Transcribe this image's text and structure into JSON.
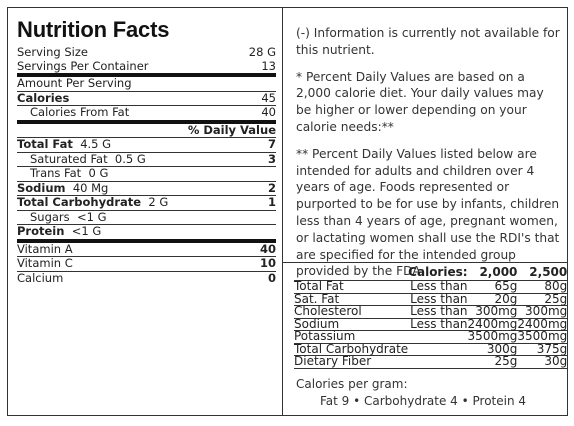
{
  "title": "Nutrition Facts",
  "serving": {
    "size_label": "Serving Size",
    "size_value": "28 G",
    "per_container_label": "Servings Per Container",
    "per_container_value": "13"
  },
  "amount_label": "Amount Per Serving",
  "calories": {
    "label": "Calories",
    "value": "45",
    "from_fat_label": "Calories From Fat",
    "from_fat_value": "40"
  },
  "dv_header": "% Daily Value",
  "nutrients": {
    "total_fat": {
      "label": "Total Fat",
      "amount": "4.5 G",
      "dv": "7"
    },
    "saturated_fat": {
      "label": "Saturated Fat",
      "amount": "0.5 G",
      "dv": "3"
    },
    "trans_fat": {
      "label": "Trans Fat",
      "amount": "0 G"
    },
    "sodium": {
      "label": "Sodium",
      "amount": "40 Mg",
      "dv": "2"
    },
    "total_carb": {
      "label": "Total Carbohydrate",
      "amount": "2 G",
      "dv": "1"
    },
    "sugars": {
      "label": "Sugars",
      "amount": "<1 G"
    },
    "protein": {
      "label": "Protein",
      "amount": "<1 G"
    }
  },
  "vitamins": [
    {
      "label": "Vitamin A",
      "value": "40"
    },
    {
      "label": "Vitamin C",
      "value": "10"
    },
    {
      "label": "Calcium",
      "value": "0"
    }
  ],
  "notes": {
    "na": "(-) Information is currently not available for this nutrient.",
    "pdv": "* Percent Daily Values are based on a 2,000 calorie diet. Your daily values may be higher or lower depending on your calorie needs:**",
    "pdv2": "** Percent Daily Values listed below are intended for adults and children over 4 years of age. Foods represented or purported to be for use by infants, children less than 4 years of age, pregnant women, or lactating women shall use the RDI's that are specified for the intended group provided by the FDA."
  },
  "dv_table": {
    "header": [
      "",
      "Calories:",
      "2,000",
      "2,500"
    ],
    "rows": [
      [
        "Total Fat",
        "Less than",
        "65g",
        "80g"
      ],
      [
        "Sat. Fat",
        "Less than",
        "20g",
        "25g"
      ],
      [
        "Cholesterol",
        "Less than",
        "300mg",
        "300mg"
      ],
      [
        "Sodium",
        "Less than",
        "2400mg",
        "2400mg"
      ],
      [
        "Potassium",
        "",
        "3500mg",
        "3500mg"
      ],
      [
        "Total Carbohydrate",
        "",
        "300g",
        "375g"
      ],
      [
        "Dietary Fiber",
        "",
        "25g",
        "30g"
      ]
    ]
  },
  "per_gram": {
    "label": "Calories per gram:",
    "values": "Fat 9 • Carbohydrate 4 • Protein 4"
  }
}
